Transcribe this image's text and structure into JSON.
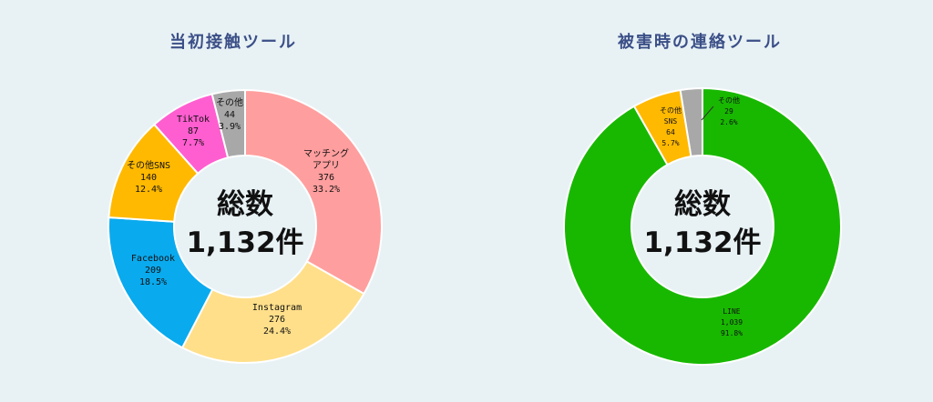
{
  "chart_data": [
    {
      "type": "pie",
      "title": "当初接触ツール",
      "center_label": [
        "総数",
        "1,132件"
      ],
      "slices": [
        {
          "name": "マッチングアプリ",
          "label_lines": [
            "マッチング",
            "アプリ"
          ],
          "value": 376,
          "percent": "33.2%",
          "color": "#ff9e9e"
        },
        {
          "name": "Instagram",
          "label_lines": [
            "Instagram"
          ],
          "value": 276,
          "percent": "24.4%",
          "color": "#ffdf8a"
        },
        {
          "name": "Facebook",
          "label_lines": [
            "Facebook"
          ],
          "value": 209,
          "percent": "18.5%",
          "color": "#0aaaee"
        },
        {
          "name": "その他SNS",
          "label_lines": [
            "その他SNS"
          ],
          "value": 140,
          "percent": "12.4%",
          "color": "#ffb900"
        },
        {
          "name": "TikTok",
          "label_lines": [
            "TikTok"
          ],
          "value": 87,
          "percent": "7.7%",
          "color": "#ff5ed0"
        },
        {
          "name": "その他",
          "label_lines": [
            "その他"
          ],
          "value": 44,
          "percent": "3.9%",
          "color": "#a8a8a8"
        }
      ]
    },
    {
      "type": "pie",
      "title": "被害時の連絡ツール",
      "center_label": [
        "総数",
        "1,132件"
      ],
      "slices": [
        {
          "name": "LINE",
          "label_lines": [
            "LINE"
          ],
          "value": "1,039",
          "percent": "91.8%",
          "color": "#18b800"
        },
        {
          "name": "その他SNS",
          "label_lines": [
            "その他",
            "SNS"
          ],
          "value": 64,
          "percent": "5.7%",
          "color": "#ffb900"
        },
        {
          "name": "その他",
          "label_lines": [
            "その他"
          ],
          "value": 29,
          "percent": "2.6%",
          "color": "#a8a8a8"
        }
      ]
    }
  ]
}
